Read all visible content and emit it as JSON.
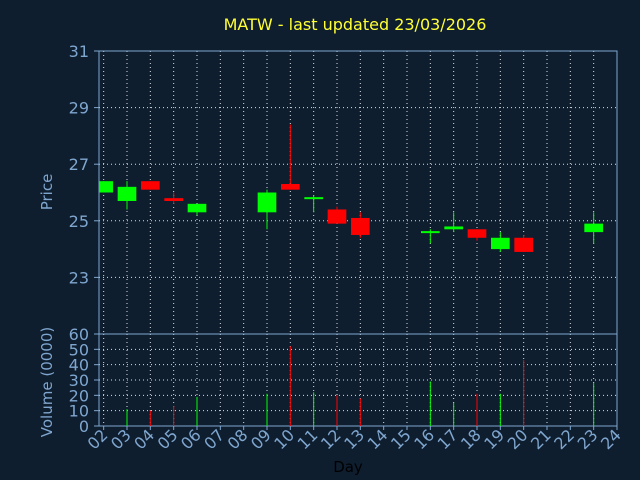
{
  "chart_data": {
    "type": "candlestick",
    "title": "MATW - last updated 23/03/2026",
    "xlabel": "Day",
    "price_axis": {
      "ylabel": "Price",
      "ylim": [
        21,
        31
      ],
      "ticks": [
        "31",
        "29",
        "27",
        "25",
        "23"
      ]
    },
    "volume_axis": {
      "ylabel": "Volume (0000)",
      "ylim": [
        0,
        60
      ],
      "ticks": [
        "60",
        "50",
        "40",
        "30",
        "20",
        "10",
        "0"
      ]
    },
    "x_ticks": [
      "02",
      "03",
      "04",
      "05",
      "06",
      "07",
      "08",
      "09",
      "10",
      "11",
      "12",
      "13",
      "14",
      "15",
      "16",
      "17",
      "18",
      "19",
      "20",
      "21",
      "22",
      "23",
      "24"
    ],
    "grid": true,
    "colors": {
      "up": "#00ff00",
      "down": "#ff0000",
      "grid": "#ffffff",
      "axis": "#7fa6cf",
      "background": "#0f1e2f",
      "title": "#ffff33"
    },
    "candles": [
      {
        "day": 2,
        "open": 26.0,
        "high": 26.4,
        "low": 26.0,
        "close": 26.4,
        "volume": 0
      },
      {
        "day": 3,
        "open": 25.7,
        "high": 26.4,
        "low": 25.4,
        "close": 26.2,
        "volume": 11
      },
      {
        "day": 4,
        "open": 26.4,
        "high": 26.4,
        "low": 26.1,
        "close": 26.1,
        "volume": 10
      },
      {
        "day": 5,
        "open": 25.8,
        "high": 26.0,
        "low": 25.6,
        "close": 25.7,
        "volume": 13
      },
      {
        "day": 6,
        "open": 25.3,
        "high": 25.6,
        "low": 25.2,
        "close": 25.6,
        "volume": 19
      },
      {
        "day": 9,
        "open": 25.3,
        "high": 26.1,
        "low": 24.7,
        "close": 26.0,
        "volume": 21
      },
      {
        "day": 10,
        "open": 26.3,
        "high": 28.4,
        "low": 26.1,
        "close": 26.1,
        "volume": 52
      },
      {
        "day": 11,
        "open": 25.8,
        "high": 25.9,
        "low": 25.3,
        "close": 25.8,
        "volume": 22
      },
      {
        "day": 12,
        "open": 25.4,
        "high": 25.5,
        "low": 24.9,
        "close": 24.9,
        "volume": 20
      },
      {
        "day": 13,
        "open": 25.1,
        "high": 25.3,
        "low": 24.4,
        "close": 24.5,
        "volume": 18
      },
      {
        "day": 16,
        "open": 24.6,
        "high": 24.7,
        "low": 24.2,
        "close": 24.6,
        "volume": 29
      },
      {
        "day": 17,
        "open": 24.7,
        "high": 25.3,
        "low": 24.6,
        "close": 24.8,
        "volume": 15
      },
      {
        "day": 18,
        "open": 24.7,
        "high": 24.7,
        "low": 24.3,
        "close": 24.4,
        "volume": 21
      },
      {
        "day": 19,
        "open": 24.0,
        "high": 24.6,
        "low": 23.9,
        "close": 24.4,
        "volume": 21
      },
      {
        "day": 20,
        "open": 24.4,
        "high": 24.5,
        "low": 23.9,
        "close": 23.9,
        "volume": 43
      },
      {
        "day": 23,
        "open": 24.6,
        "high": 25.3,
        "low": 24.2,
        "close": 24.9,
        "volume": 28
      }
    ]
  }
}
